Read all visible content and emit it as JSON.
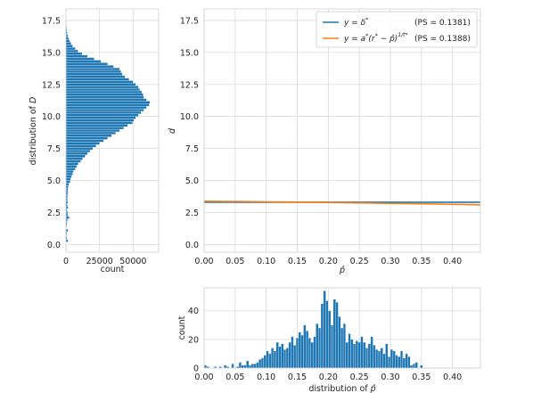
{
  "colors": {
    "blue": "#1f77b4",
    "orange": "#ff7f0e",
    "grid": "#d9d9d9"
  },
  "chart_data": [
    {
      "id": "main",
      "type": "line",
      "xlabel": "p̂",
      "ylabel": "d",
      "xlim": [
        0.0,
        0.445
      ],
      "ylim": [
        -0.6,
        18.4
      ],
      "xticks": [
        "0.00",
        "0.05",
        "0.10",
        "0.15",
        "0.20",
        "0.25",
        "0.30",
        "0.35",
        "0.40"
      ],
      "yticks": [
        "0.0",
        "2.5",
        "5.0",
        "7.5",
        "10.0",
        "12.5",
        "15.0",
        "17.5"
      ],
      "grid": true,
      "legend_position": "top-right",
      "series": [
        {
          "name": "y = δ*",
          "ps": "(PS = 0.1381)",
          "color": "#1f77b4",
          "x": [
            0.0,
            0.445
          ],
          "y": [
            3.3,
            3.3
          ]
        },
        {
          "name": "y = a*(r* − p̂)^(1/t*)",
          "ps": "(PS = 0.1388)",
          "color": "#ff7f0e",
          "x": [
            0.0,
            0.05,
            0.1,
            0.15,
            0.2,
            0.25,
            0.3,
            0.35,
            0.4,
            0.445
          ],
          "y": [
            3.38,
            3.36,
            3.34,
            3.31,
            3.28,
            3.25,
            3.21,
            3.18,
            3.14,
            3.1
          ]
        }
      ]
    },
    {
      "id": "left",
      "type": "bar",
      "orientation": "horizontal",
      "xlabel": "count",
      "ylabel": "distribution of D",
      "xlim": [
        0,
        69000
      ],
      "ylim": [
        -0.6,
        18.4
      ],
      "xticks": [
        "0",
        "25000",
        "50000"
      ],
      "yticks": [
        "0.0",
        "2.5",
        "5.0",
        "7.5",
        "10.0",
        "12.5",
        "15.0",
        "17.5"
      ],
      "grid": true,
      "bin_width": 0.2,
      "centers": [
        0.1,
        0.3,
        0.5,
        0.7,
        0.9,
        1.1,
        1.3,
        1.5,
        1.7,
        1.9,
        2.1,
        2.3,
        2.5,
        2.7,
        2.9,
        3.1,
        3.3,
        3.5,
        3.7,
        3.9,
        4.1,
        4.3,
        4.5,
        4.7,
        4.9,
        5.1,
        5.3,
        5.5,
        5.7,
        5.9,
        6.1,
        6.3,
        6.5,
        6.7,
        6.9,
        7.1,
        7.3,
        7.5,
        7.7,
        7.9,
        8.1,
        8.3,
        8.5,
        8.7,
        8.9,
        9.1,
        9.3,
        9.5,
        9.7,
        9.9,
        10.1,
        10.3,
        10.5,
        10.7,
        10.9,
        11.1,
        11.3,
        11.5,
        11.7,
        11.9,
        12.1,
        12.3,
        12.5,
        12.7,
        12.9,
        13.1,
        13.3,
        13.5,
        13.7,
        13.9,
        14.1,
        14.3,
        14.5,
        14.7,
        14.9,
        15.1,
        15.3,
        15.5,
        15.7,
        15.9,
        16.1,
        16.3,
        16.5,
        16.7,
        16.9,
        17.1,
        17.3,
        17.5,
        17.7
      ],
      "values": [
        300,
        1500,
        800,
        600,
        700,
        1500,
        400,
        700,
        900,
        1100,
        2500,
        1400,
        1300,
        900,
        1600,
        1000,
        1400,
        1100,
        1200,
        1300,
        1600,
        1500,
        1700,
        2200,
        3100,
        3500,
        4200,
        5000,
        5600,
        7000,
        8000,
        9200,
        11000,
        12500,
        14300,
        16000,
        18000,
        20000,
        22500,
        25000,
        28000,
        31000,
        34000,
        37000,
        40000,
        43000,
        46000,
        49500,
        50500,
        52000,
        54000,
        56000,
        58000,
        60000,
        62000,
        62500,
        60000,
        58000,
        57500,
        56500,
        55000,
        54000,
        52000,
        50000,
        47000,
        44000,
        42000,
        41000,
        40000,
        35500,
        31000,
        26000,
        21000,
        16000,
        12000,
        9000,
        7000,
        5000,
        3800,
        2800,
        2000,
        1400,
        1000,
        800,
        600,
        400,
        300,
        200,
        100
      ]
    },
    {
      "id": "bottom",
      "type": "bar",
      "xlabel": "distribution of p̂",
      "ylabel": "count",
      "xlim": [
        0.0,
        0.445
      ],
      "ylim": [
        0,
        56
      ],
      "xticks": [
        "0.00",
        "0.05",
        "0.10",
        "0.15",
        "0.20",
        "0.25",
        "0.30",
        "0.35",
        "0.40"
      ],
      "yticks": [
        "0",
        "20",
        "40"
      ],
      "grid": true,
      "bin_width": 0.004,
      "centers": [
        0.002,
        0.006,
        0.018,
        0.026,
        0.034,
        0.038,
        0.046,
        0.054,
        0.058,
        0.062,
        0.066,
        0.07,
        0.074,
        0.078,
        0.082,
        0.086,
        0.09,
        0.094,
        0.098,
        0.102,
        0.106,
        0.11,
        0.114,
        0.118,
        0.122,
        0.126,
        0.13,
        0.134,
        0.138,
        0.142,
        0.146,
        0.15,
        0.154,
        0.158,
        0.162,
        0.166,
        0.17,
        0.174,
        0.178,
        0.182,
        0.186,
        0.19,
        0.194,
        0.198,
        0.202,
        0.206,
        0.21,
        0.214,
        0.218,
        0.222,
        0.226,
        0.23,
        0.234,
        0.238,
        0.242,
        0.246,
        0.25,
        0.254,
        0.258,
        0.262,
        0.266,
        0.27,
        0.274,
        0.278,
        0.282,
        0.286,
        0.29,
        0.294,
        0.298,
        0.302,
        0.306,
        0.31,
        0.314,
        0.318,
        0.322,
        0.326,
        0.33,
        0.334,
        0.338,
        0.342,
        0.35
      ],
      "values": [
        2,
        1,
        1,
        1,
        2,
        1,
        3,
        1,
        4,
        2,
        2,
        5,
        2,
        3,
        3,
        4,
        6,
        7,
        9,
        12,
        10,
        14,
        12,
        18,
        15,
        17,
        13,
        14,
        18,
        22,
        16,
        21,
        25,
        23,
        30,
        26,
        21,
        18,
        22,
        31,
        28,
        45,
        54,
        47,
        40,
        30,
        48,
        46,
        36,
        28,
        31,
        18,
        24,
        20,
        17,
        19,
        18,
        22,
        18,
        14,
        17,
        22,
        16,
        13,
        12,
        14,
        10,
        17,
        8,
        13,
        12,
        9,
        8,
        12,
        7,
        10,
        8,
        2,
        3,
        4,
        2
      ]
    }
  ]
}
